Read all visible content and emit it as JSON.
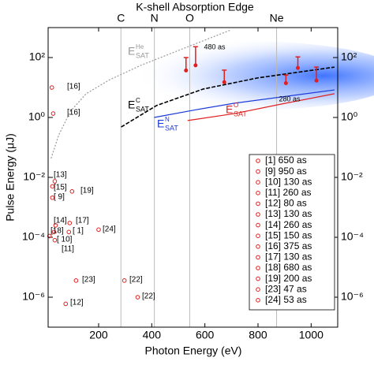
{
  "chart_data": {
    "type": "scatter",
    "title": "K-shell Absorption Edge",
    "x_label": "Photon Energy (eV)",
    "y_label": "Pulse Energy (μJ)",
    "xlim": [
      10,
      1100
    ],
    "xticks": [
      200,
      400,
      600,
      800,
      1000
    ],
    "ylim": [
      1e-07,
      1000
    ],
    "log_y": true,
    "yticks": [
      {
        "value": 1e-06,
        "label": "10⁻⁶"
      },
      {
        "value": 0.0001,
        "label": "10⁻⁴"
      },
      {
        "value": 0.01,
        "label": "10⁻²"
      },
      {
        "value": 1,
        "label": "10⁰"
      },
      {
        "value": 100,
        "label": "10²"
      }
    ],
    "edges": [
      {
        "value": 284,
        "label": "C"
      },
      {
        "value": 410,
        "label": "N"
      },
      {
        "value": 543,
        "label": "O"
      },
      {
        "value": 870,
        "label": "Ne"
      }
    ],
    "points": {
      "color": "#e02020",
      "labels": [
        "[16]",
        "[16]",
        "[13]",
        "[15]",
        "[ 9]",
        "[19]",
        "[14]",
        "[17]",
        "[18]",
        "[ 1]",
        "[24]",
        "[ 10]",
        "[11]",
        "[23]",
        "[22]",
        "[22]",
        "[12]"
      ],
      "x": [
        24,
        29,
        35,
        26,
        26,
        100,
        38,
        91,
        32,
        88,
        200,
        35,
        15,
        115,
        297,
        347,
        76
      ],
      "y": [
        10,
        1.35,
        0.0074,
        0.005,
        0.0021,
        0.0034,
        0.00025,
        0.0003,
        0.00015,
        0.00015,
        0.00018,
        8e-05,
        0.00011,
        3.6e-06,
        3.6e-06,
        1e-06,
        6e-07
      ]
    },
    "measurements": {
      "color": "#e02020",
      "x": [
        529,
        565,
        673,
        905,
        950,
        1020
      ],
      "y": [
        37,
        55,
        15,
        14,
        45,
        17
      ],
      "y_high": [
        100,
        230,
        38,
        26,
        105,
        48
      ]
    },
    "annotations": [
      "480 as",
      "280 as"
    ],
    "curves": [
      {
        "main": "E",
        "sup": "He",
        "sub": "SAT",
        "color": "#999999",
        "dash": "2,2",
        "x": [
          21,
          50,
          94,
          153,
          241,
          359,
          506,
          697
        ],
        "y": [
          0.043,
          0.26,
          1.6,
          6.2,
          18,
          55,
          180,
          830
        ]
      },
      {
        "main": "E",
        "sup": "C",
        "sub": "SAT",
        "color": "#000000",
        "dash": "5,2",
        "x": [
          285,
          418,
          594,
          800,
          1088
        ],
        "y": [
          0.48,
          2.5,
          8.9,
          21,
          48
        ]
      },
      {
        "main": "E",
        "sup": "N",
        "sub": "SAT",
        "color": "#1a3ad8",
        "dash": "",
        "x": [
          409,
          565,
          712,
          1088
        ],
        "y": [
          1.0,
          1.8,
          3.0,
          8.3
        ]
      },
      {
        "main": "E",
        "sup": "O",
        "sub": "SAT",
        "color": "#e02020",
        "dash": "",
        "x": [
          535,
          712,
          888,
          1088
        ],
        "y": [
          0.79,
          1.35,
          2.8,
          6.2
        ]
      }
    ],
    "legend": [
      "[1] 650 as",
      "[9] 950 as",
      "[10] 130 as",
      "[11] 260 as",
      "[12] 80 as",
      "[13] 130 as",
      "[14] 260 as",
      "[15] 150 as",
      "[16] 375 as",
      "[17] 130 as",
      "[18] 680 as",
      "[19] 200 as",
      "[23] 47 as",
      "[24] 53 as"
    ]
  }
}
